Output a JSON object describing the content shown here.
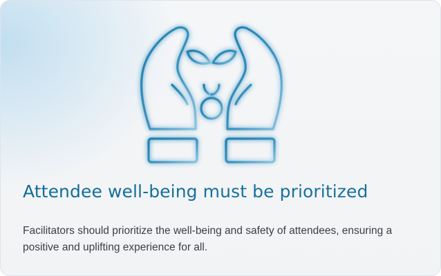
{
  "card": {
    "illustration_icon": "hands-protecting-plant-icon",
    "title": "Attendee well-being must be prioritized",
    "description": "Facilitators should prioritize the well-being and safety of attendees, ensuring a positive and uplifting experience for all."
  },
  "colors": {
    "accent": "#12709C",
    "icon_stroke": "#2f89b8",
    "body_text": "#3a3f46",
    "background": "#f3f4f6",
    "glow": "#b0d6ee"
  }
}
